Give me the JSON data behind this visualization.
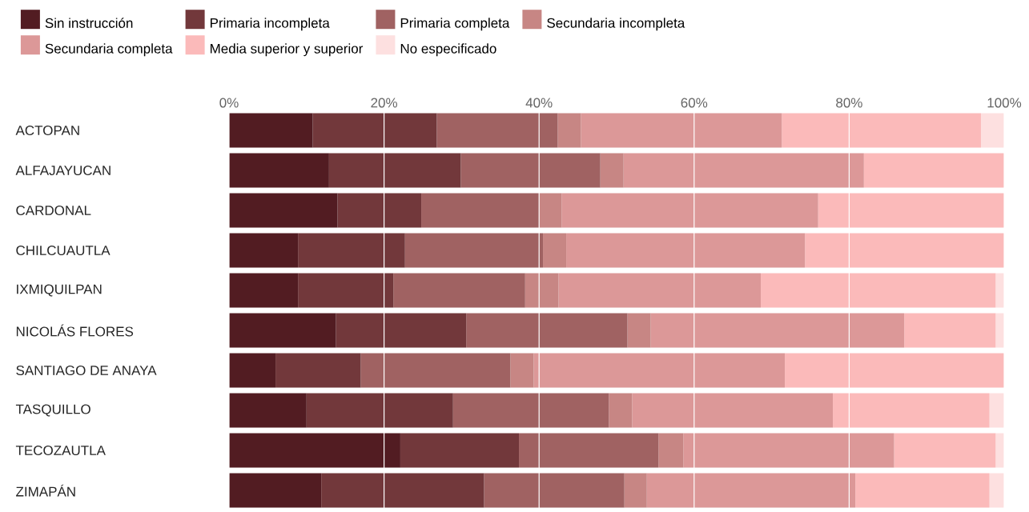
{
  "chart_data": {
    "type": "bar",
    "orientation": "horizontal",
    "stacked": true,
    "categories": [
      "ACTOPAN",
      "ALFAJAYUCAN",
      "CARDONAL",
      "CHILCUAUTLA",
      "IXMIQUILPAN",
      "NICOLÁS FLORES",
      "SANTIAGO DE ANAYA",
      "TASQUILLO",
      "TECOZAUTLA",
      "ZIMAPÁN"
    ],
    "series": [
      {
        "name": "Sin instrucción",
        "color": "#521c22",
        "values": [
          10.8,
          12.9,
          14.0,
          8.9,
          8.9,
          13.8,
          6.0,
          10.0,
          22.1,
          11.9
        ]
      },
      {
        "name": "Primaria incompleta",
        "color": "#72383b",
        "values": [
          16.0,
          17.0,
          10.8,
          13.8,
          12.3,
          16.8,
          11.0,
          18.9,
          15.3,
          21.0
        ]
      },
      {
        "name": "Primaria completa",
        "color": "#a06262",
        "values": [
          15.6,
          18.0,
          15.2,
          17.8,
          17.0,
          20.8,
          19.3,
          20.1,
          18.0,
          18.1
        ]
      },
      {
        "name": "Secundaria incompleta",
        "color": "#c78684",
        "values": [
          3.0,
          3.0,
          2.9,
          3.0,
          4.3,
          3.0,
          3.0,
          3.0,
          3.2,
          2.9
        ]
      },
      {
        "name": "Secundaria completa",
        "color": "#dc9898",
        "values": [
          25.9,
          31.0,
          33.1,
          30.8,
          26.1,
          32.7,
          32.4,
          25.9,
          27.2,
          26.9
        ]
      },
      {
        "name": "Media superior y superior",
        "color": "#fbbaba",
        "values": [
          25.7,
          18.1,
          24.0,
          25.7,
          30.3,
          11.8,
          28.3,
          20.2,
          13.1,
          17.3
        ]
      },
      {
        "name": "No especificado",
        "color": "#fde0e0",
        "values": [
          3.0,
          null,
          null,
          null,
          1.1,
          1.1,
          null,
          1.9,
          1.1,
          1.9
        ]
      }
    ],
    "xlim": [
      0,
      100
    ],
    "xticks": [
      {
        "value": 0,
        "label": "0%"
      },
      {
        "value": 20,
        "label": "20%"
      },
      {
        "value": 40,
        "label": "40%"
      },
      {
        "value": 60,
        "label": "60%"
      },
      {
        "value": 80,
        "label": "80%"
      },
      {
        "value": 100,
        "label": "100%"
      }
    ],
    "grid": "x",
    "legend": "top"
  }
}
